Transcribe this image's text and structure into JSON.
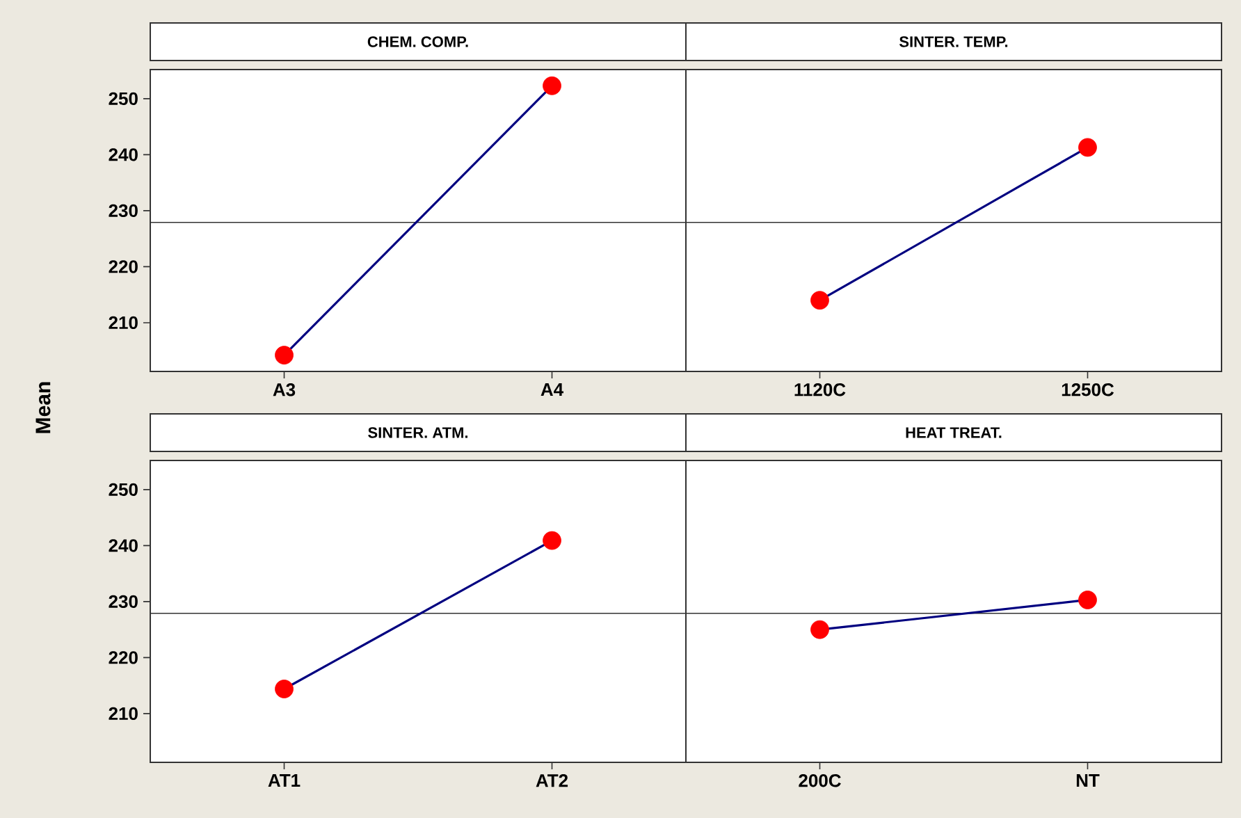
{
  "chart_data": [
    {
      "type": "line",
      "title": "CHEM. COMP.",
      "ylabel": "Mean",
      "categories": [
        "A3",
        "A4"
      ],
      "values": [
        204.2,
        252.3
      ],
      "color": "#000080",
      "colors": [
        "#ff0000",
        "#ff0000"
      ],
      "marker": "circle",
      "ylim": [
        201.3,
        255.2
      ],
      "yticks": [
        210,
        220,
        230,
        240,
        250
      ],
      "ref_lines": [
        {
          "axis": "y",
          "value": 227.9
        }
      ]
    },
    {
      "type": "line",
      "title": "SINTER. TEMP.",
      "categories": [
        "1120C",
        "1250C"
      ],
      "values": [
        214.0,
        241.3
      ],
      "color": "#000080",
      "colors": [
        "#ff0000",
        "#ff0000"
      ],
      "marker": "circle",
      "ylim": [
        201.3,
        255.2
      ],
      "tick_labels": "x",
      "ref_lines": [
        {
          "axis": "y",
          "value": 227.9
        }
      ]
    },
    {
      "type": "line",
      "title": "SINTER. ATM.",
      "categories": [
        "AT1",
        "AT2"
      ],
      "values": [
        214.4,
        240.9
      ],
      "color": "#000080",
      "colors": [
        "#ff0000",
        "#ff0000"
      ],
      "marker": "circle",
      "ylim": [
        201.3,
        255.2
      ],
      "yticks": [
        210,
        220,
        230,
        240,
        250
      ],
      "ref_lines": [
        {
          "axis": "y",
          "value": 227.9
        }
      ]
    },
    {
      "type": "line",
      "title": "HEAT TREAT.",
      "categories": [
        "200C",
        "NT"
      ],
      "values": [
        225.0,
        230.3
      ],
      "color": "#000080",
      "colors": [
        "#ff0000",
        "#ff0000"
      ],
      "marker": "circle",
      "ylim": [
        201.3,
        255.2
      ],
      "tick_labels": "x",
      "ref_lines": [
        {
          "axis": "y",
          "value": 227.9
        }
      ]
    }
  ]
}
